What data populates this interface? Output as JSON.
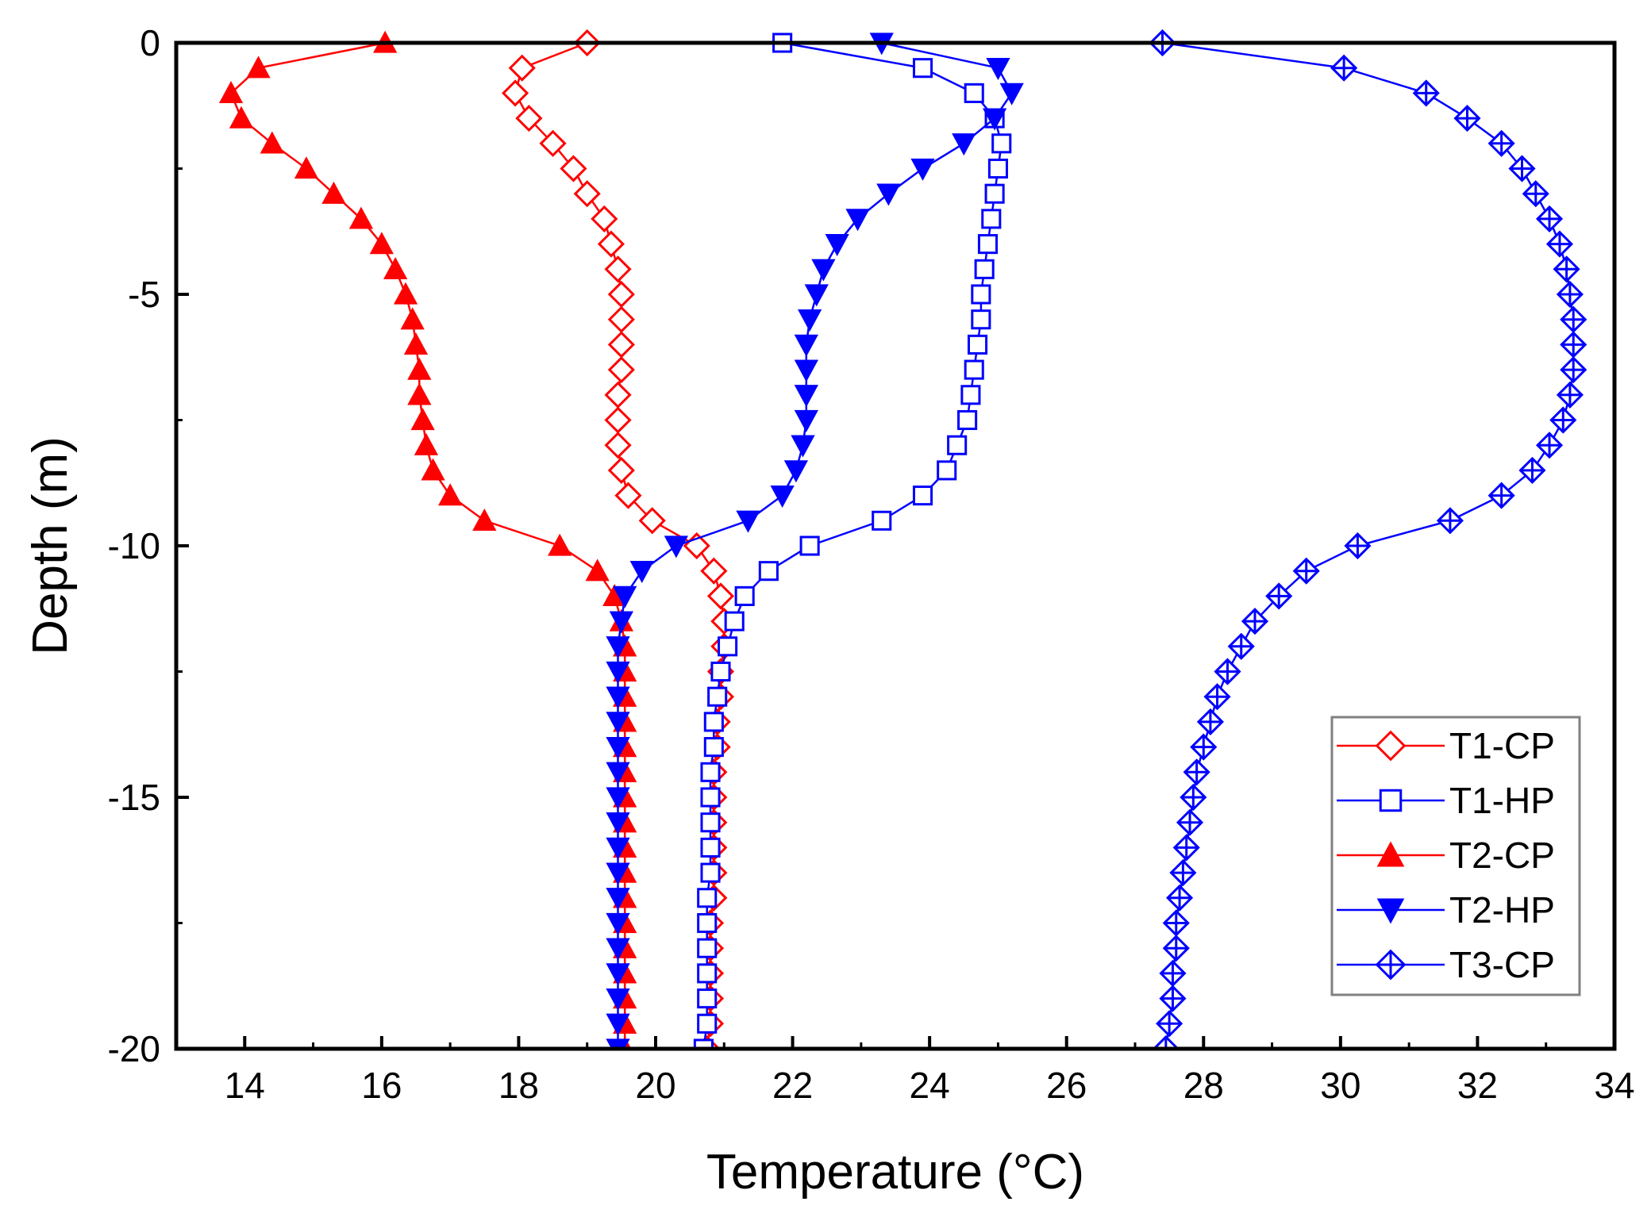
{
  "chart_data": {
    "type": "scatter",
    "title": "",
    "xlabel": "Temperature (°C)",
    "ylabel": "Depth (m)",
    "xlim": [
      13,
      34
    ],
    "ylim": [
      -20,
      0
    ],
    "xticks": [
      14,
      16,
      18,
      20,
      22,
      24,
      26,
      28,
      30,
      32,
      34
    ],
    "yticks": [
      0,
      -5,
      -10,
      -15,
      -20
    ],
    "grid": false,
    "legend_position": "lower-right",
    "series": [
      {
        "name": "T1-CP",
        "color": "#ff0000",
        "marker": "open-diamond",
        "points": [
          [
            19.0,
            0
          ],
          [
            18.05,
            -0.5
          ],
          [
            17.95,
            -1
          ],
          [
            18.15,
            -1.5
          ],
          [
            18.5,
            -2
          ],
          [
            18.8,
            -2.5
          ],
          [
            19.0,
            -3
          ],
          [
            19.25,
            -3.5
          ],
          [
            19.35,
            -4
          ],
          [
            19.45,
            -4.5
          ],
          [
            19.5,
            -5
          ],
          [
            19.5,
            -5.5
          ],
          [
            19.5,
            -6
          ],
          [
            19.5,
            -6.5
          ],
          [
            19.45,
            -7
          ],
          [
            19.45,
            -7.5
          ],
          [
            19.45,
            -8
          ],
          [
            19.5,
            -8.5
          ],
          [
            19.6,
            -9
          ],
          [
            19.95,
            -9.5
          ],
          [
            20.6,
            -10
          ],
          [
            20.85,
            -10.5
          ],
          [
            20.95,
            -11
          ],
          [
            21.0,
            -11.5
          ],
          [
            21.0,
            -12
          ],
          [
            20.95,
            -12.5
          ],
          [
            20.95,
            -13
          ],
          [
            20.9,
            -13.5
          ],
          [
            20.9,
            -14
          ],
          [
            20.85,
            -14.5
          ],
          [
            20.85,
            -15
          ],
          [
            20.85,
            -15.5
          ],
          [
            20.85,
            -16
          ],
          [
            20.85,
            -16.5
          ],
          [
            20.85,
            -17
          ],
          [
            20.8,
            -17.5
          ],
          [
            20.8,
            -18
          ],
          [
            20.8,
            -18.5
          ],
          [
            20.8,
            -19
          ],
          [
            20.8,
            -19.5
          ],
          [
            20.75,
            -20
          ]
        ]
      },
      {
        "name": "T1-HP",
        "color": "#0000ff",
        "marker": "open-square",
        "points": [
          [
            21.85,
            0
          ],
          [
            23.9,
            -0.5
          ],
          [
            24.65,
            -1
          ],
          [
            24.95,
            -1.5
          ],
          [
            25.05,
            -2
          ],
          [
            25.0,
            -2.5
          ],
          [
            24.95,
            -3
          ],
          [
            24.9,
            -3.5
          ],
          [
            24.85,
            -4
          ],
          [
            24.8,
            -4.5
          ],
          [
            24.75,
            -5
          ],
          [
            24.75,
            -5.5
          ],
          [
            24.7,
            -6
          ],
          [
            24.65,
            -6.5
          ],
          [
            24.6,
            -7
          ],
          [
            24.55,
            -7.5
          ],
          [
            24.4,
            -8
          ],
          [
            24.25,
            -8.5
          ],
          [
            23.9,
            -9
          ],
          [
            23.3,
            -9.5
          ],
          [
            22.25,
            -10
          ],
          [
            21.65,
            -10.5
          ],
          [
            21.3,
            -11
          ],
          [
            21.15,
            -11.5
          ],
          [
            21.05,
            -12
          ],
          [
            20.95,
            -12.5
          ],
          [
            20.9,
            -13
          ],
          [
            20.85,
            -13.5
          ],
          [
            20.85,
            -14
          ],
          [
            20.8,
            -14.5
          ],
          [
            20.8,
            -15
          ],
          [
            20.8,
            -15.5
          ],
          [
            20.8,
            -16
          ],
          [
            20.8,
            -16.5
          ],
          [
            20.75,
            -17
          ],
          [
            20.75,
            -17.5
          ],
          [
            20.75,
            -18
          ],
          [
            20.75,
            -18.5
          ],
          [
            20.75,
            -19
          ],
          [
            20.75,
            -19.5
          ],
          [
            20.7,
            -20
          ]
        ]
      },
      {
        "name": "T2-CP",
        "color": "#ff0000",
        "marker": "filled-triangle-up",
        "points": [
          [
            16.05,
            0
          ],
          [
            14.2,
            -0.5
          ],
          [
            13.8,
            -1
          ],
          [
            13.95,
            -1.5
          ],
          [
            14.4,
            -2
          ],
          [
            14.9,
            -2.5
          ],
          [
            15.3,
            -3
          ],
          [
            15.7,
            -3.5
          ],
          [
            16.0,
            -4
          ],
          [
            16.2,
            -4.5
          ],
          [
            16.35,
            -5
          ],
          [
            16.45,
            -5.5
          ],
          [
            16.5,
            -6
          ],
          [
            16.55,
            -6.5
          ],
          [
            16.55,
            -7
          ],
          [
            16.6,
            -7.5
          ],
          [
            16.65,
            -8
          ],
          [
            16.75,
            -8.5
          ],
          [
            17.0,
            -9
          ],
          [
            17.5,
            -9.5
          ],
          [
            18.6,
            -10
          ],
          [
            19.15,
            -10.5
          ],
          [
            19.4,
            -11
          ],
          [
            19.5,
            -11.5
          ],
          [
            19.55,
            -12
          ],
          [
            19.55,
            -12.5
          ],
          [
            19.55,
            -13
          ],
          [
            19.55,
            -13.5
          ],
          [
            19.55,
            -14
          ],
          [
            19.55,
            -14.5
          ],
          [
            19.55,
            -15
          ],
          [
            19.55,
            -15.5
          ],
          [
            19.55,
            -16
          ],
          [
            19.55,
            -16.5
          ],
          [
            19.55,
            -17
          ],
          [
            19.55,
            -17.5
          ],
          [
            19.55,
            -18
          ],
          [
            19.55,
            -18.5
          ],
          [
            19.55,
            -19
          ],
          [
            19.55,
            -19.5
          ],
          [
            19.55,
            -20
          ]
        ]
      },
      {
        "name": "T2-HP",
        "color": "#0000ff",
        "marker": "filled-triangle-down",
        "points": [
          [
            23.3,
            0
          ],
          [
            25.0,
            -0.5
          ],
          [
            25.2,
            -1
          ],
          [
            24.95,
            -1.5
          ],
          [
            24.5,
            -2
          ],
          [
            23.9,
            -2.5
          ],
          [
            23.4,
            -3
          ],
          [
            22.95,
            -3.5
          ],
          [
            22.65,
            -4
          ],
          [
            22.45,
            -4.5
          ],
          [
            22.35,
            -5
          ],
          [
            22.25,
            -5.5
          ],
          [
            22.2,
            -6
          ],
          [
            22.2,
            -6.5
          ],
          [
            22.2,
            -7
          ],
          [
            22.2,
            -7.5
          ],
          [
            22.15,
            -8
          ],
          [
            22.05,
            -8.5
          ],
          [
            21.85,
            -9
          ],
          [
            21.35,
            -9.5
          ],
          [
            20.3,
            -10
          ],
          [
            19.8,
            -10.5
          ],
          [
            19.55,
            -11
          ],
          [
            19.5,
            -11.5
          ],
          [
            19.45,
            -12
          ],
          [
            19.45,
            -12.5
          ],
          [
            19.45,
            -13
          ],
          [
            19.45,
            -13.5
          ],
          [
            19.45,
            -14
          ],
          [
            19.45,
            -14.5
          ],
          [
            19.45,
            -15
          ],
          [
            19.45,
            -15.5
          ],
          [
            19.45,
            -16
          ],
          [
            19.45,
            -16.5
          ],
          [
            19.45,
            -17
          ],
          [
            19.45,
            -17.5
          ],
          [
            19.45,
            -18
          ],
          [
            19.45,
            -18.5
          ],
          [
            19.45,
            -19
          ],
          [
            19.45,
            -19.5
          ],
          [
            19.45,
            -20
          ]
        ]
      },
      {
        "name": "T3-CP",
        "color": "#0000ff",
        "marker": "crossed-diamond",
        "points": [
          [
            27.4,
            0
          ],
          [
            30.05,
            -0.5
          ],
          [
            31.25,
            -1
          ],
          [
            31.85,
            -1.5
          ],
          [
            32.35,
            -2
          ],
          [
            32.65,
            -2.5
          ],
          [
            32.85,
            -3
          ],
          [
            33.05,
            -3.5
          ],
          [
            33.2,
            -4
          ],
          [
            33.3,
            -4.5
          ],
          [
            33.35,
            -5
          ],
          [
            33.4,
            -5.5
          ],
          [
            33.4,
            -6
          ],
          [
            33.4,
            -6.5
          ],
          [
            33.35,
            -7
          ],
          [
            33.25,
            -7.5
          ],
          [
            33.05,
            -8
          ],
          [
            32.8,
            -8.5
          ],
          [
            32.35,
            -9
          ],
          [
            31.6,
            -9.5
          ],
          [
            30.25,
            -10
          ],
          [
            29.5,
            -10.5
          ],
          [
            29.1,
            -11
          ],
          [
            28.75,
            -11.5
          ],
          [
            28.55,
            -12
          ],
          [
            28.35,
            -12.5
          ],
          [
            28.2,
            -13
          ],
          [
            28.1,
            -13.5
          ],
          [
            28.0,
            -14
          ],
          [
            27.9,
            -14.5
          ],
          [
            27.85,
            -15
          ],
          [
            27.8,
            -15.5
          ],
          [
            27.75,
            -16
          ],
          [
            27.7,
            -16.5
          ],
          [
            27.65,
            -17
          ],
          [
            27.6,
            -17.5
          ],
          [
            27.6,
            -18
          ],
          [
            27.55,
            -18.5
          ],
          [
            27.55,
            -19
          ],
          [
            27.5,
            -19.5
          ],
          [
            27.45,
            -20
          ]
        ]
      }
    ]
  }
}
